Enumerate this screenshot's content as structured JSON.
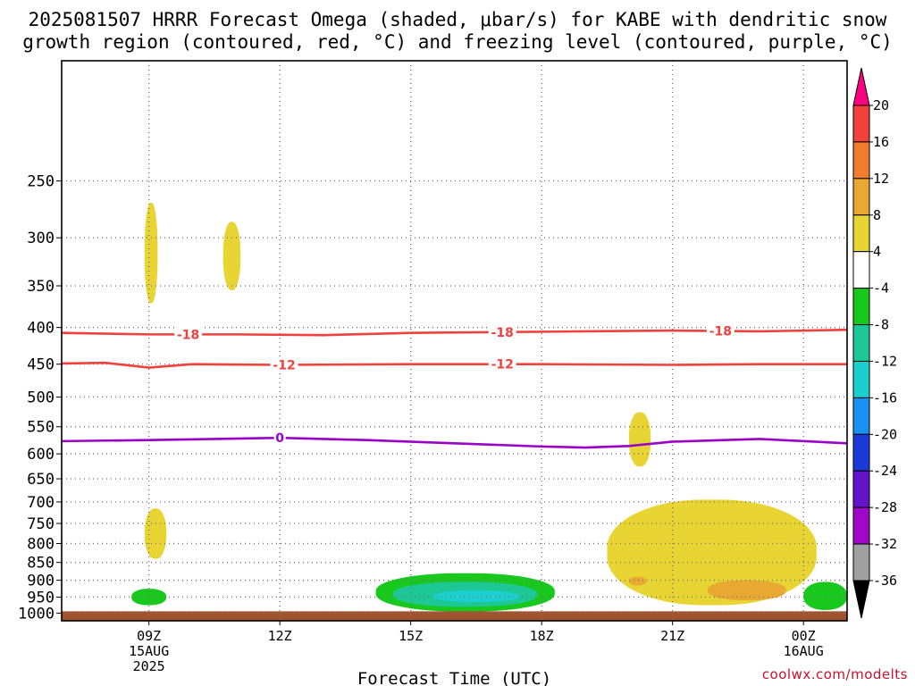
{
  "chart_data": {
    "type": "heatmap",
    "title_line1": "2025081507 HRRR Forecast Omega (shaded, μbar/s) for KABE with dendritic snow",
    "title_line2": "growth region (contoured, red, °C) and freezing level (contoured, purple, °C)",
    "xlabel": "Forecast Time (UTC)",
    "x_axis": {
      "range_hours": [
        7,
        25
      ],
      "ticks": [
        {
          "hour": 9,
          "label": "09Z",
          "sub1": "15AUG",
          "sub2": "2025"
        },
        {
          "hour": 12,
          "label": "12Z",
          "sub1": "",
          "sub2": ""
        },
        {
          "hour": 15,
          "label": "15Z",
          "sub1": "",
          "sub2": ""
        },
        {
          "hour": 18,
          "label": "18Z",
          "sub1": "",
          "sub2": ""
        },
        {
          "hour": 21,
          "label": "21Z",
          "sub1": "",
          "sub2": ""
        },
        {
          "hour": 24,
          "label": "00Z",
          "sub1": "16AUG",
          "sub2": ""
        }
      ]
    },
    "y_axis": {
      "scale": "log-pressure",
      "range_hPa": [
        1025,
        170
      ],
      "ticks": [
        "250",
        "300",
        "350",
        "400",
        "450",
        "500",
        "550",
        "600",
        "650",
        "700",
        "750",
        "800",
        "850",
        "900",
        "950",
        "1000"
      ]
    },
    "grid": true,
    "colorbar": {
      "levels": [
        "20",
        "16",
        "12",
        "8",
        "4",
        "-4",
        "-8",
        "-12",
        "-16",
        "-20",
        "-24",
        "-28",
        "-32",
        "-36"
      ],
      "colors": [
        "#ff0080",
        "#f0413c",
        "#f07e2e",
        "#e8a832",
        "#e8d534",
        "#ffffff",
        "#18c81c",
        "#1ec896",
        "#1ccfcf",
        "#1c90f0",
        "#1c3ad8",
        "#6414c8",
        "#a008c8",
        "#a0a0a0",
        "#000000"
      ]
    },
    "surface_color": "#a0522d",
    "omega_regions": [
      {
        "level": "4 to 8",
        "color": "#e8d534",
        "hours": [
          8.9,
          9.2
        ],
        "p_hPa": [
          268,
          370
        ]
      },
      {
        "level": "4 to 8",
        "color": "#e8d534",
        "hours": [
          10.7,
          11.1
        ],
        "p_hPa": [
          285,
          355
        ]
      },
      {
        "level": "4 to 8",
        "color": "#e8d534",
        "hours": [
          8.9,
          9.4
        ],
        "p_hPa": [
          715,
          840
        ]
      },
      {
        "level": "4 to 8",
        "color": "#e8d534",
        "hours": [
          20.0,
          20.5
        ],
        "p_hPa": [
          525,
          625
        ]
      },
      {
        "level": "4 to 8",
        "color": "#e8d534",
        "hours": [
          19.5,
          24.3
        ],
        "p_hPa": [
          695,
          975
        ]
      },
      {
        "level": "8 to 12",
        "color": "#e8a832",
        "hours": [
          20.0,
          20.4
        ],
        "p_hPa": [
          890,
          915
        ]
      },
      {
        "level": "8 to 12",
        "color": "#e8a832",
        "hours": [
          21.8,
          23.6
        ],
        "p_hPa": [
          900,
          960
        ]
      },
      {
        "level": "-4 to -8",
        "color": "#18c81c",
        "hours": [
          8.6,
          9.4
        ],
        "p_hPa": [
          925,
          975
        ]
      },
      {
        "level": "-4 to -8",
        "color": "#18c81c",
        "hours": [
          14.2,
          18.3
        ],
        "p_hPa": [
          880,
          995
        ]
      },
      {
        "level": "-8 to -12",
        "color": "#1ec896",
        "hours": [
          14.6,
          17.9
        ],
        "p_hPa": [
          905,
          980
        ]
      },
      {
        "level": "-12 to -16",
        "color": "#1ccfcf",
        "hours": [
          15.5,
          17.5
        ],
        "p_hPa": [
          930,
          965
        ]
      },
      {
        "level": "-4 to -8",
        "color": "#18c81c",
        "hours": [
          24.0,
          25
        ],
        "p_hPa": [
          905,
          990
        ]
      }
    ],
    "contours": [
      {
        "label": "-18",
        "color": "#f0413c",
        "label_hours": [
          9.9,
          17.1,
          22.1
        ],
        "points": [
          [
            7,
            407
          ],
          [
            9,
            409
          ],
          [
            11,
            409
          ],
          [
            13,
            410
          ],
          [
            15,
            407
          ],
          [
            17,
            406
          ],
          [
            19,
            405
          ],
          [
            21,
            404
          ],
          [
            23,
            405
          ],
          [
            25,
            403
          ]
        ]
      },
      {
        "label": "-12",
        "color": "#f0413c",
        "label_hours": [
          12.1,
          17.1
        ],
        "points": [
          [
            7,
            449
          ],
          [
            8,
            448
          ],
          [
            9,
            455
          ],
          [
            10,
            450
          ],
          [
            12,
            451
          ],
          [
            15,
            450
          ],
          [
            18,
            450
          ],
          [
            21,
            451
          ],
          [
            23,
            450
          ],
          [
            25,
            450
          ]
        ]
      },
      {
        "label": "0",
        "color": "#9a00c8",
        "label_hours": [
          12.0
        ],
        "points": [
          [
            7,
            576
          ],
          [
            9,
            574
          ],
          [
            12,
            570
          ],
          [
            14,
            574
          ],
          [
            16,
            580
          ],
          [
            18,
            586
          ],
          [
            19,
            588
          ],
          [
            20,
            585
          ],
          [
            21,
            577
          ],
          [
            23,
            572
          ],
          [
            25,
            580
          ]
        ]
      }
    ]
  },
  "watermark": "coolwx.com/modelts"
}
